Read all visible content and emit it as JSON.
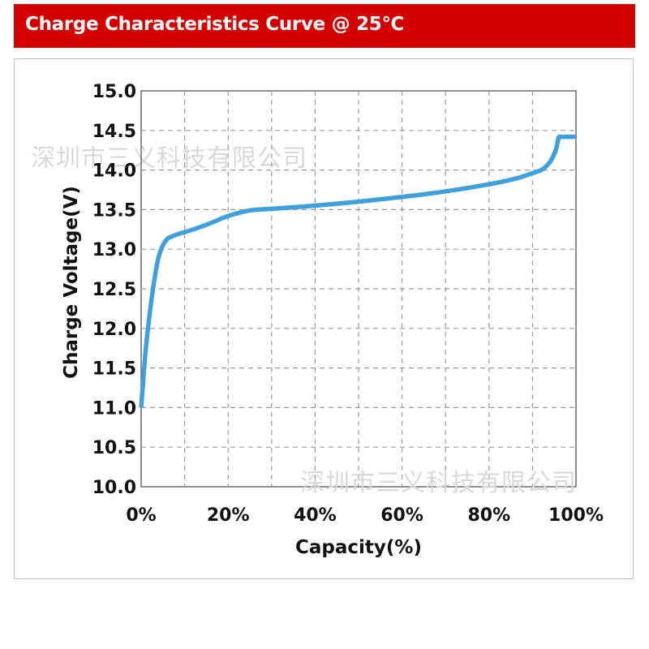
{
  "header": {
    "title": "Charge Characteristics Curve  @ 25℃"
  },
  "watermarks": [
    "深圳市三义科技有限公司",
    "深圳市三义科技有限公司"
  ],
  "colors": {
    "header_bg": "#d40000",
    "curve": "#3fa0dc",
    "grid": "#9a9a9a",
    "axis": "#555555"
  },
  "chart_data": {
    "type": "line",
    "title": "",
    "xlabel": "Capacity(%)",
    "ylabel": "Charge Voltage(V)",
    "xlim": [
      0,
      100
    ],
    "ylim": [
      10.0,
      15.0
    ],
    "x_ticks": [
      0,
      20,
      40,
      60,
      80,
      100
    ],
    "x_tick_labels": [
      "0%",
      "20%",
      "40%",
      "60%",
      "80%",
      "100%"
    ],
    "y_ticks": [
      10.0,
      10.5,
      11.0,
      11.5,
      12.0,
      12.5,
      13.0,
      13.5,
      14.0,
      14.5,
      15.0
    ],
    "y_tick_labels": [
      "10.0",
      "10.5",
      "11.0",
      "11.5",
      "12.0",
      "12.5",
      "13.0",
      "13.5",
      "14.0",
      "14.5",
      "15.0"
    ],
    "grid": true,
    "grid_style": "dashed",
    "grid_x_step": 10,
    "series": [
      {
        "x": [
          0,
          1,
          2,
          3,
          4,
          5,
          6,
          7,
          9,
          12,
          16,
          20,
          25,
          30,
          40,
          50,
          60,
          70,
          80,
          86,
          90,
          92,
          93,
          94,
          94.8,
          95.4,
          95.8,
          96,
          96.2,
          97,
          100
        ],
        "y": [
          11.0,
          11.7,
          12.2,
          12.6,
          12.9,
          13.05,
          13.13,
          13.16,
          13.2,
          13.25,
          13.33,
          13.42,
          13.49,
          13.51,
          13.55,
          13.6,
          13.66,
          13.73,
          13.82,
          13.89,
          13.96,
          14.0,
          14.04,
          14.1,
          14.18,
          14.26,
          14.36,
          14.41,
          14.42,
          14.42,
          14.42
        ]
      }
    ]
  }
}
